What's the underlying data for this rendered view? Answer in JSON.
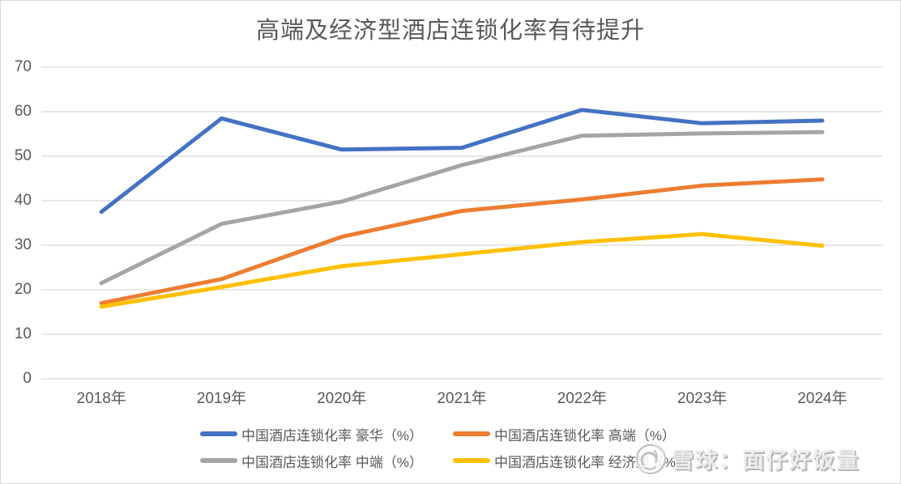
{
  "title": "高端及经济型酒店连锁化率有待提升",
  "watermark": {
    "source_label": "雪球：面仔好饭量",
    "logo": "xueqiu-snowball-logo"
  },
  "colors": {
    "luxury_blue": "#4472C4",
    "upscale_orange": "#ED7D31",
    "midscale_gray": "#A5A5A5",
    "economy_yellow": "#FFC000",
    "axis_text": "#595959",
    "gridline": "#D9D9D9"
  },
  "chart_data": {
    "type": "line",
    "title": "高端及经济型酒店连锁化率有待提升",
    "categories": [
      "2018年",
      "2019年",
      "2020年",
      "2021年",
      "2022年",
      "2023年",
      "2024年"
    ],
    "series": [
      {
        "key": "luxury",
        "name": "中国酒店连锁化率 豪华（%）",
        "color": "#4472C4",
        "values": [
          37.5,
          58.5,
          51.5,
          51.9,
          60.4,
          57.4,
          58.0
        ]
      },
      {
        "key": "upscale",
        "name": "中国酒店连锁化率 高端（%）",
        "color": "#ED7D31",
        "values": [
          17.0,
          22.4,
          31.9,
          37.7,
          40.3,
          43.4,
          44.8
        ]
      },
      {
        "key": "midscale",
        "name": "中国酒店连锁化率 中端（%）",
        "color": "#A5A5A5",
        "values": [
          21.5,
          34.8,
          39.8,
          48.0,
          54.6,
          55.1,
          55.4
        ]
      },
      {
        "key": "economy",
        "name": "中国酒店连锁化率 经济型（%）",
        "color": "#FFC000",
        "values": [
          16.2,
          20.6,
          25.3,
          28.0,
          30.7,
          32.5,
          29.9
        ]
      }
    ],
    "ylim": [
      0,
      70
    ],
    "ytick_step": 10,
    "y_tick_labels": [
      "0",
      "10",
      "20",
      "30",
      "40",
      "50",
      "60",
      "70"
    ],
    "grid": true,
    "legend_position": "bottom"
  }
}
